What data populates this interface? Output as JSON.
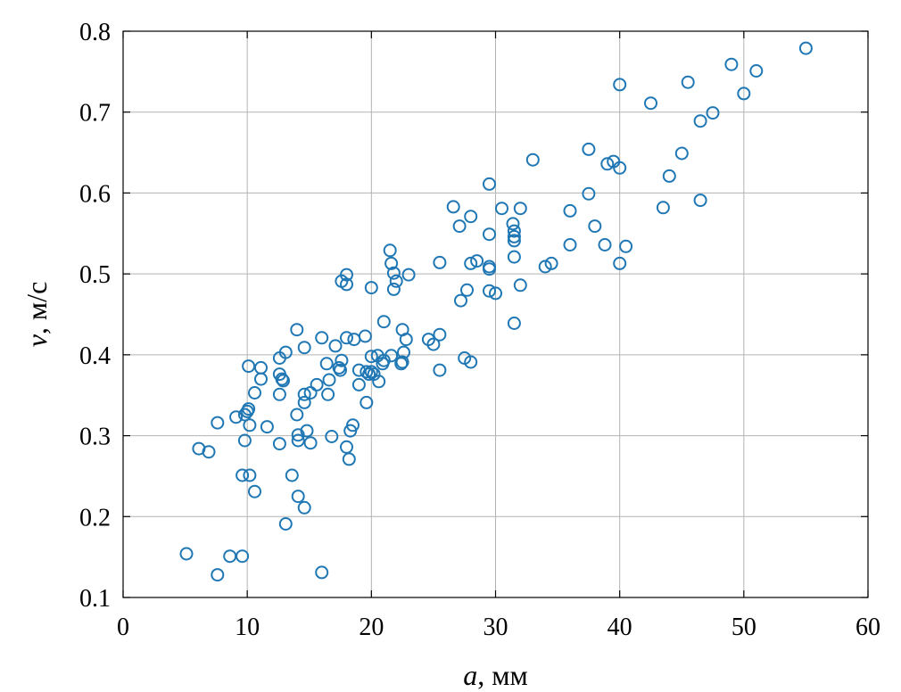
{
  "chart_data": {
    "type": "scatter",
    "title": "",
    "xlabel_var": "a",
    "xlabel_unit": ", мм",
    "ylabel_var": "v",
    "ylabel_unit": ", м/с",
    "xlim": [
      0,
      60
    ],
    "ylim": [
      0.1,
      0.8
    ],
    "grid": true,
    "marker": "open-circle",
    "marker_color": "#1f77b4",
    "x_ticks": [
      "0",
      "10",
      "20",
      "30",
      "40",
      "50",
      "60"
    ],
    "y_ticks": [
      "0.1",
      "0.2",
      "0.3",
      "0.4",
      "0.5",
      "0.6",
      "0.7",
      "0.8"
    ],
    "points": [
      [
        5.1,
        0.154
      ],
      [
        6.1,
        0.284
      ],
      [
        6.9,
        0.28
      ],
      [
        7.6,
        0.316
      ],
      [
        7.6,
        0.128
      ],
      [
        8.6,
        0.151
      ],
      [
        9.1,
        0.323
      ],
      [
        9.6,
        0.151
      ],
      [
        9.6,
        0.251
      ],
      [
        9.8,
        0.294
      ],
      [
        9.8,
        0.326
      ],
      [
        10.0,
        0.33
      ],
      [
        10.1,
        0.333
      ],
      [
        10.1,
        0.386
      ],
      [
        10.2,
        0.313
      ],
      [
        10.2,
        0.251
      ],
      [
        10.6,
        0.231
      ],
      [
        10.6,
        0.353
      ],
      [
        11.1,
        0.37
      ],
      [
        11.1,
        0.384
      ],
      [
        11.6,
        0.311
      ],
      [
        12.6,
        0.29
      ],
      [
        12.6,
        0.351
      ],
      [
        12.6,
        0.376
      ],
      [
        12.8,
        0.37
      ],
      [
        12.9,
        0.368
      ],
      [
        13.1,
        0.191
      ],
      [
        13.1,
        0.403
      ],
      [
        12.6,
        0.396
      ],
      [
        13.6,
        0.251
      ],
      [
        14.0,
        0.431
      ],
      [
        14.0,
        0.326
      ],
      [
        14.1,
        0.225
      ],
      [
        14.1,
        0.301
      ],
      [
        14.1,
        0.294
      ],
      [
        14.6,
        0.211
      ],
      [
        14.6,
        0.341
      ],
      [
        14.6,
        0.351
      ],
      [
        14.6,
        0.409
      ],
      [
        14.8,
        0.306
      ],
      [
        15.1,
        0.291
      ],
      [
        15.1,
        0.353
      ],
      [
        15.6,
        0.363
      ],
      [
        16.0,
        0.421
      ],
      [
        16.0,
        0.131
      ],
      [
        16.4,
        0.389
      ],
      [
        16.5,
        0.351
      ],
      [
        16.6,
        0.369
      ],
      [
        16.8,
        0.299
      ],
      [
        17.1,
        0.411
      ],
      [
        17.4,
        0.384
      ],
      [
        17.5,
        0.381
      ],
      [
        17.6,
        0.393
      ],
      [
        17.6,
        0.491
      ],
      [
        18.0,
        0.499
      ],
      [
        18.0,
        0.487
      ],
      [
        18.0,
        0.421
      ],
      [
        18.0,
        0.286
      ],
      [
        18.2,
        0.271
      ],
      [
        18.3,
        0.306
      ],
      [
        18.5,
        0.313
      ],
      [
        18.6,
        0.419
      ],
      [
        19.0,
        0.381
      ],
      [
        19.0,
        0.363
      ],
      [
        19.5,
        0.423
      ],
      [
        19.6,
        0.379
      ],
      [
        19.6,
        0.341
      ],
      [
        19.8,
        0.376
      ],
      [
        20.0,
        0.379
      ],
      [
        20.0,
        0.483
      ],
      [
        20.0,
        0.398
      ],
      [
        20.2,
        0.376
      ],
      [
        20.5,
        0.399
      ],
      [
        20.6,
        0.367
      ],
      [
        20.9,
        0.389
      ],
      [
        21.0,
        0.393
      ],
      [
        21.0,
        0.441
      ],
      [
        21.5,
        0.529
      ],
      [
        21.6,
        0.513
      ],
      [
        21.6,
        0.399
      ],
      [
        21.8,
        0.481
      ],
      [
        21.8,
        0.501
      ],
      [
        22.0,
        0.491
      ],
      [
        22.4,
        0.389
      ],
      [
        22.5,
        0.431
      ],
      [
        22.5,
        0.391
      ],
      [
        22.6,
        0.403
      ],
      [
        22.8,
        0.419
      ],
      [
        23.0,
        0.499
      ],
      [
        24.6,
        0.419
      ],
      [
        25.0,
        0.413
      ],
      [
        25.5,
        0.425
      ],
      [
        25.5,
        0.514
      ],
      [
        25.5,
        0.381
      ],
      [
        26.6,
        0.583
      ],
      [
        27.1,
        0.559
      ],
      [
        27.2,
        0.467
      ],
      [
        27.5,
        0.396
      ],
      [
        27.7,
        0.48
      ],
      [
        28.0,
        0.571
      ],
      [
        28.0,
        0.391
      ],
      [
        28.0,
        0.513
      ],
      [
        28.5,
        0.516
      ],
      [
        29.5,
        0.611
      ],
      [
        29.5,
        0.549
      ],
      [
        29.5,
        0.509
      ],
      [
        29.5,
        0.506
      ],
      [
        29.5,
        0.479
      ],
      [
        30.0,
        0.476
      ],
      [
        30.5,
        0.581
      ],
      [
        31.4,
        0.562
      ],
      [
        31.5,
        0.553
      ],
      [
        31.5,
        0.546
      ],
      [
        31.5,
        0.541
      ],
      [
        31.5,
        0.521
      ],
      [
        31.5,
        0.439
      ],
      [
        32.0,
        0.581
      ],
      [
        32.0,
        0.486
      ],
      [
        33.0,
        0.641
      ],
      [
        34.0,
        0.509
      ],
      [
        34.5,
        0.513
      ],
      [
        36.0,
        0.578
      ],
      [
        36.0,
        0.536
      ],
      [
        37.5,
        0.654
      ],
      [
        37.5,
        0.599
      ],
      [
        38.0,
        0.559
      ],
      [
        38.8,
        0.536
      ],
      [
        39.0,
        0.636
      ],
      [
        39.5,
        0.639
      ],
      [
        40.0,
        0.631
      ],
      [
        40.0,
        0.734
      ],
      [
        40.0,
        0.513
      ],
      [
        40.5,
        0.534
      ],
      [
        42.5,
        0.711
      ],
      [
        43.5,
        0.582
      ],
      [
        44.0,
        0.621
      ],
      [
        45.0,
        0.649
      ],
      [
        45.5,
        0.737
      ],
      [
        46.5,
        0.689
      ],
      [
        46.5,
        0.591
      ],
      [
        47.5,
        0.699
      ],
      [
        49.0,
        0.759
      ],
      [
        50.0,
        0.723
      ],
      [
        51.0,
        0.751
      ],
      [
        55.0,
        0.779
      ]
    ]
  }
}
